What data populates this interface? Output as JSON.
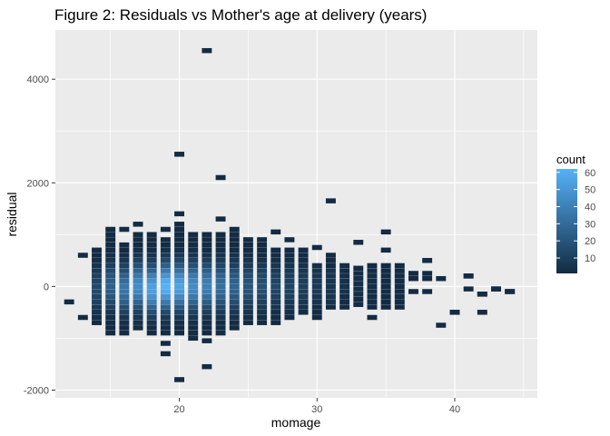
{
  "chart_data": {
    "type": "heatmap",
    "title": "Figure 2: Residuals vs Mother's age at delivery (years)",
    "xlabel": "momage",
    "ylabel": "residual",
    "xlim": [
      11,
      46
    ],
    "ylim": [
      -2150,
      4950
    ],
    "x_ticks": [
      20,
      30,
      40
    ],
    "x_minor": [
      15,
      25,
      35,
      45
    ],
    "y_ticks": [
      -2000,
      0,
      2000,
      4000
    ],
    "y_minor": [
      -1000,
      1000,
      3000
    ],
    "bin_height": 100,
    "legend": {
      "title": "count",
      "range": [
        1,
        62
      ],
      "ticks": [
        10,
        20,
        30,
        40,
        50,
        60
      ],
      "low_color": "#132B43",
      "high_color": "#56B1F7"
    },
    "columns": [
      {
        "x": 12,
        "peak": 0,
        "spread": 0,
        "outliers": [
          -300
        ]
      },
      {
        "x": 13,
        "peak": -100,
        "spread": 8,
        "outliers": [
          600,
          -600
        ]
      },
      {
        "x": 14,
        "peak": -50,
        "spread": 15,
        "outliers": [],
        "ymin": -700,
        "ymax": 700
      },
      {
        "x": 15,
        "peak": 0,
        "spread": 25,
        "outliers": [
          1100
        ],
        "ymin": -900,
        "ymax": 1000
      },
      {
        "x": 16,
        "peak": -50,
        "spread": 35,
        "outliers": [
          1100
        ],
        "ymin": -900,
        "ymax": 800
      },
      {
        "x": 17,
        "peak": 0,
        "spread": 45,
        "outliers": [
          1200
        ],
        "ymin": -800,
        "ymax": 1000
      },
      {
        "x": 18,
        "peak": -50,
        "spread": 55,
        "outliers": [],
        "ymin": -900,
        "ymax": 1000
      },
      {
        "x": 19,
        "peak": 0,
        "spread": 62,
        "outliers": [
          1100,
          -1100,
          -1300
        ],
        "ymin": -900,
        "ymax": 900
      },
      {
        "x": 20,
        "peak": 0,
        "spread": 55,
        "outliers": [
          2550,
          1400,
          -1800
        ],
        "ymin": -900,
        "ymax": 1200
      },
      {
        "x": 21,
        "peak": 0,
        "spread": 45,
        "outliers": [
          -1000
        ],
        "ymin": -900,
        "ymax": 1000
      },
      {
        "x": 22,
        "peak": 0,
        "spread": 40,
        "outliers": [
          4550,
          -1050,
          -1550
        ],
        "ymin": -900,
        "ymax": 1000
      },
      {
        "x": 23,
        "peak": 0,
        "spread": 32,
        "outliers": [
          2100,
          1300,
          -900
        ],
        "ymin": -800,
        "ymax": 1000
      },
      {
        "x": 24,
        "peak": 0,
        "spread": 28,
        "outliers": [],
        "ymin": -800,
        "ymax": 1100
      },
      {
        "x": 25,
        "peak": 0,
        "spread": 20,
        "outliers": [
          -700
        ],
        "ymin": -600,
        "ymax": 900
      },
      {
        "x": 26,
        "peak": 0,
        "spread": 18,
        "outliers": [],
        "ymin": -700,
        "ymax": 900
      },
      {
        "x": 27,
        "peak": 0,
        "spread": 14,
        "outliers": [
          1050,
          -700
        ],
        "ymin": -600,
        "ymax": 700
      },
      {
        "x": 28,
        "peak": 0,
        "spread": 12,
        "outliers": [
          900,
          -600
        ],
        "ymin": -500,
        "ymax": 750
      },
      {
        "x": 29,
        "peak": 0,
        "spread": 10,
        "outliers": [],
        "ymin": -500,
        "ymax": 700
      },
      {
        "x": 30,
        "peak": 0,
        "spread": 8,
        "outliers": [
          750
        ],
        "ymin": -600,
        "ymax": 400
      },
      {
        "x": 31,
        "peak": 0,
        "spread": 6,
        "outliers": [
          1650
        ],
        "ymin": -400,
        "ymax": 600
      },
      {
        "x": 32,
        "peak": 0,
        "spread": 4,
        "outliers": [],
        "ymin": -400,
        "ymax": 400
      },
      {
        "x": 33,
        "peak": 0,
        "spread": 3,
        "outliers": [
          850
        ],
        "ymin": -350,
        "ymax": 400
      },
      {
        "x": 34,
        "peak": 0,
        "spread": 3,
        "outliers": [
          -600
        ],
        "ymin": -400,
        "ymax": 400
      },
      {
        "x": 35,
        "peak": 0,
        "spread": 2,
        "outliers": [
          1050,
          700
        ],
        "ymin": -400,
        "ymax": 400
      },
      {
        "x": 36,
        "peak": 0,
        "spread": 2,
        "outliers": [],
        "ymin": -400,
        "ymax": 400
      },
      {
        "x": 37,
        "peak": 0,
        "spread": 1,
        "outliers": [
          -100
        ],
        "ymin": 150,
        "ymax": 300
      },
      {
        "x": 38,
        "peak": 0,
        "spread": 1,
        "outliers": [
          500,
          -100
        ],
        "ymin": 150,
        "ymax": 300
      },
      {
        "x": 39,
        "peak": 0,
        "spread": 1,
        "outliers": [
          -750
        ],
        "ymin": 150,
        "ymax": 150
      },
      {
        "x": 40,
        "peak": 0,
        "spread": 1,
        "outliers": [
          -500
        ],
        "ymin": -500,
        "ymax": -500
      },
      {
        "x": 41,
        "peak": 0,
        "spread": 1,
        "outliers": [
          200,
          -50
        ],
        "ymin": 200,
        "ymax": 200
      },
      {
        "x": 42,
        "peak": 0,
        "spread": 1,
        "outliers": [
          -150,
          -500
        ],
        "ymin": -150,
        "ymax": -150
      },
      {
        "x": 43,
        "peak": 0,
        "spread": 1,
        "outliers": [
          -50
        ],
        "ymin": -50,
        "ymax": -50
      },
      {
        "x": 44,
        "peak": 0,
        "spread": 1,
        "outliers": [
          -100
        ],
        "ymin": -100,
        "ymax": -100
      }
    ]
  }
}
